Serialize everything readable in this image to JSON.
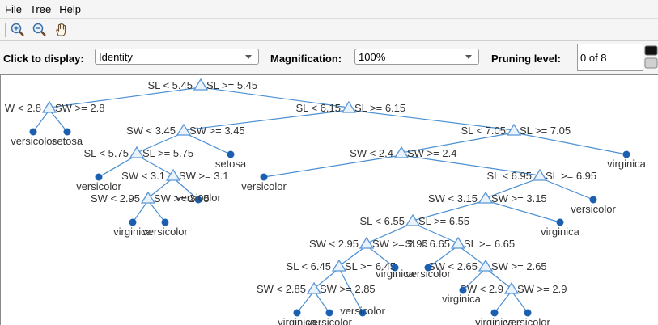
{
  "menu": [
    "File",
    "Tree",
    "Help"
  ],
  "toolbar": {
    "icons": [
      "zoom-in-icon",
      "zoom-out-icon",
      "pan-hand-icon"
    ]
  },
  "controls": {
    "display_label": "Click to display:",
    "display_value": "Identity",
    "magnification_label": "Magnification:",
    "magnification_value": "100%",
    "pruning_label": "Pruning level:",
    "pruning_value": "0 of 8"
  },
  "colors": {
    "edge": "#4a8fd1",
    "node": "#1b5fb0",
    "triangle": "#5b97d6"
  },
  "tree": {
    "splits": [
      {
        "id": "n1",
        "left": "SL < 5.45",
        "right": "SL >= 5.45"
      },
      {
        "id": "n2",
        "left": "W < 2.8",
        "right": "SW >= 2.8"
      },
      {
        "id": "n3",
        "left": "SL < 6.15",
        "right": "SL >= 6.15"
      },
      {
        "id": "n4",
        "left": "SW < 3.45",
        "right": "SW >= 3.45"
      },
      {
        "id": "n5",
        "left": "SL < 7.05",
        "right": "SL >= 7.05"
      },
      {
        "id": "n6",
        "left": "SL < 5.75",
        "right": "SL >= 5.75"
      },
      {
        "id": "n7",
        "left": "SW < 2.4",
        "right": "SW >= 2.4"
      },
      {
        "id": "n8",
        "left": "SW < 3.1",
        "right": "SW >= 3.1"
      },
      {
        "id": "n9",
        "left": "SL < 6.95",
        "right": "SL >= 6.95"
      },
      {
        "id": "n10",
        "left": "SW < 2.95",
        "right": "SW >= 2.95"
      },
      {
        "id": "n11",
        "left": "SW < 3.15",
        "right": "SW >= 3.15"
      },
      {
        "id": "n12",
        "left": "SL < 6.55",
        "right": "SL >= 6.55"
      },
      {
        "id": "n13",
        "left": "SW < 2.95",
        "right": "SW >= 2.95"
      },
      {
        "id": "n14",
        "left": "SL < 6.65",
        "right": "SL >= 6.65"
      },
      {
        "id": "n15",
        "left": "SL < 6.45",
        "right": "SL >= 6.45"
      },
      {
        "id": "n16",
        "left": "SW < 2.65",
        "right": "SW >= 2.65"
      },
      {
        "id": "n17",
        "left": "SW < 2.85",
        "right": "SW >= 2.85"
      },
      {
        "id": "n18",
        "left": "SW < 2.9",
        "right": "SW >= 2.9"
      }
    ],
    "leaves": [
      {
        "id": "l1",
        "label": "versicolor"
      },
      {
        "id": "l2",
        "label": "setosa"
      },
      {
        "id": "l3",
        "label": "setosa"
      },
      {
        "id": "l4",
        "label": "virginica"
      },
      {
        "id": "l5",
        "label": "versicolor"
      },
      {
        "id": "l6",
        "label": "versicolor"
      },
      {
        "id": "l7",
        "label": "versicolor"
      },
      {
        "id": "l8",
        "label": "versicolor"
      },
      {
        "id": "l9",
        "label": "virginica"
      },
      {
        "id": "l10",
        "label": "versicolor"
      },
      {
        "id": "l11",
        "label": "virginica"
      },
      {
        "id": "l12",
        "label": "virginica"
      },
      {
        "id": "l13",
        "label": "versicolor"
      },
      {
        "id": "l14",
        "label": "virginica"
      },
      {
        "id": "l15",
        "label": "versicolor"
      },
      {
        "id": "l16",
        "label": "virginica"
      },
      {
        "id": "l17",
        "label": "versicolor"
      },
      {
        "id": "l18",
        "label": "virginica"
      },
      {
        "id": "l19",
        "label": "versicolor"
      }
    ]
  }
}
